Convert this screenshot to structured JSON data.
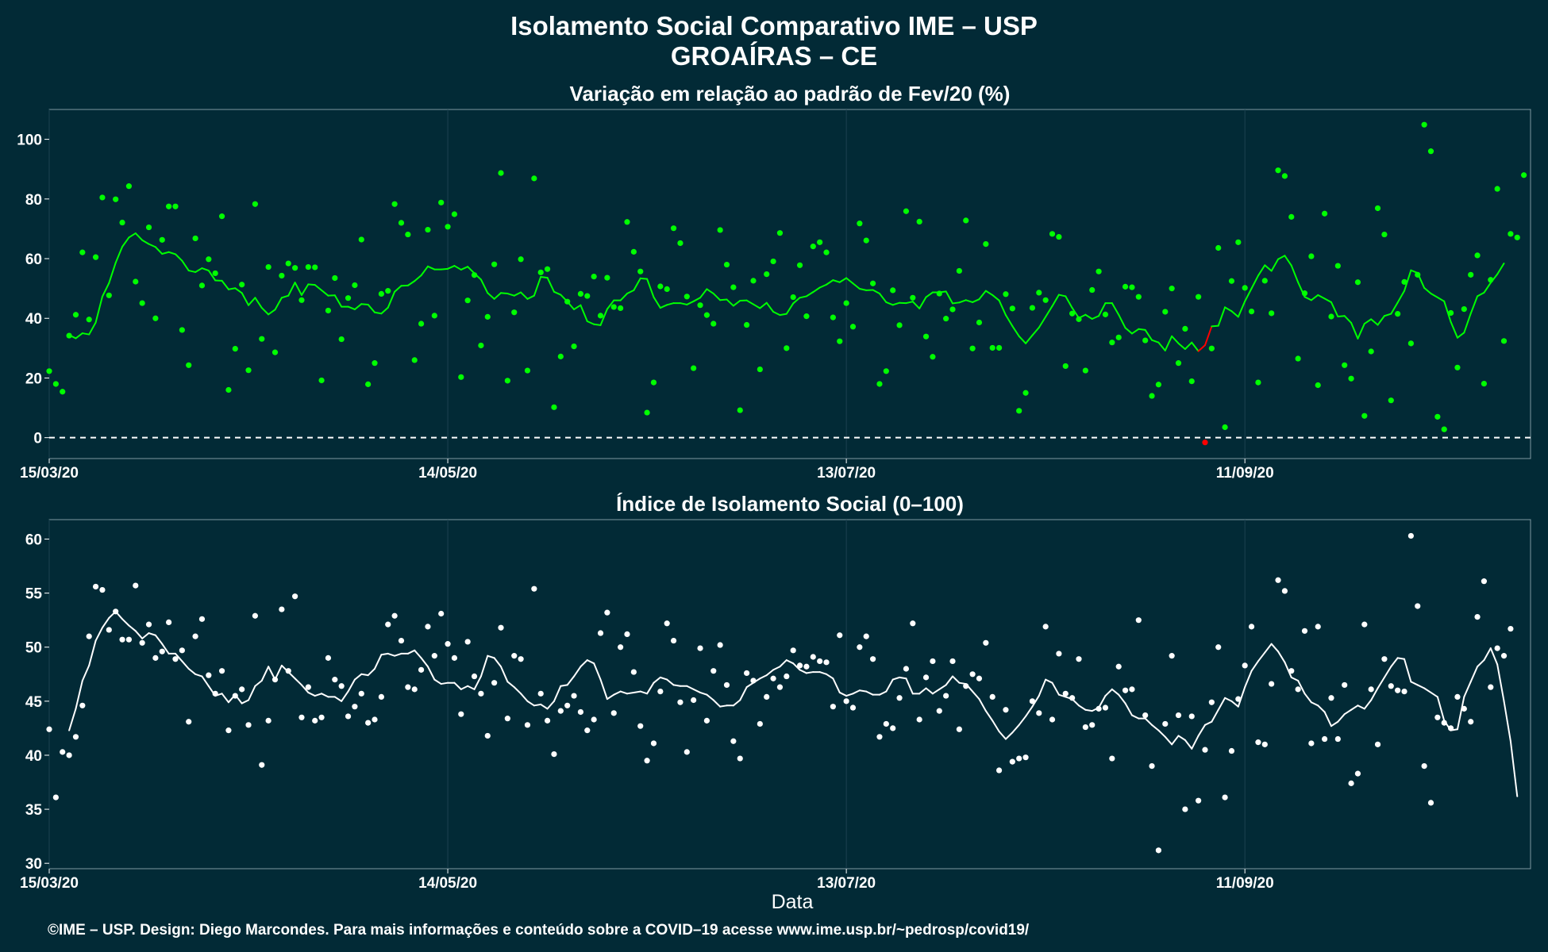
{
  "title": "Isolamento Social Comparativo IME – USP",
  "subtitle": "GROAÍRAS – CE",
  "footer": "©IME – USP. Design: Diego Marcondes. Para mais informações e conteúdo sobre a COVID–19 acesse www.ime.usp.br/~pedrosp/covid19/",
  "colors": {
    "background": "#022a36",
    "green": "#00ff00",
    "white": "#ffffff",
    "negative": "#ff0000",
    "grid": "#1c4250"
  },
  "chart_data": [
    {
      "type": "scatter",
      "title": "Variação em relação ao padrão de Fev/20 (%)",
      "xlabel": "",
      "ylabel": "",
      "x_start": "15/03/20",
      "x_tick_labels": [
        "15/03/20",
        "14/05/20",
        "13/07/20",
        "11/09/20"
      ],
      "x_tick_day_offsets": [
        0,
        60,
        120,
        180
      ],
      "y_ticks": [
        0,
        20,
        40,
        60,
        80,
        100
      ],
      "ylim": [
        -7,
        110
      ],
      "xlim_days": [
        0,
        223
      ],
      "reference_line": 0,
      "series": [
        {
          "kind": "points",
          "values": [
            22.3,
            18.0,
            15.4,
            34.2,
            41.2,
            62.1,
            39.6,
            60.5,
            80.5,
            47.7,
            79.9,
            72.1,
            84.3,
            52.3,
            45.1,
            70.5,
            40.0,
            66.3,
            77.5,
            77.5,
            36.1,
            24.3,
            66.8,
            51.0,
            59.8,
            55.1,
            74.2,
            16.0,
            29.8,
            51.3,
            22.6,
            78.3,
            33.1,
            57.2,
            28.6,
            54.3,
            58.4,
            56.9,
            46.1,
            57.2,
            57.1,
            19.2,
            42.6,
            53.5,
            33.0,
            46.8,
            51.1,
            66.4,
            17.9,
            25.0,
            48.2,
            49.2,
            78.3,
            72.0,
            68.1,
            26.0,
            38.2,
            69.7,
            40.9,
            78.8,
            70.7,
            74.9,
            20.3,
            46.0,
            54.5,
            30.9,
            40.5,
            58.1,
            88.7,
            19.1,
            42.0,
            59.8,
            22.5,
            86.9,
            55.4,
            56.5,
            10.2,
            27.2,
            45.6,
            30.6,
            48.2,
            47.5,
            54.0,
            40.9,
            53.6,
            43.8,
            43.4,
            72.3,
            62.3,
            55.7,
            8.4,
            18.5,
            50.7,
            49.8,
            70.2,
            65.2,
            47.3,
            23.3,
            44.4,
            41.1,
            38.2,
            69.6,
            58.0,
            50.4,
            9.2,
            37.8,
            52.6,
            22.9,
            54.8,
            59.1,
            68.6,
            30.0,
            47.1,
            57.8,
            40.7,
            64.1,
            65.5,
            62.1,
            40.3,
            32.3,
            45.1,
            37.2,
            71.8,
            66.1,
            51.7,
            18.0,
            22.3,
            49.4,
            37.7,
            75.9,
            46.9,
            72.4,
            33.9,
            27.1,
            48.3,
            39.9,
            43.0,
            55.9,
            72.8,
            29.9,
            38.6,
            64.9,
            30.1,
            30.1,
            48.1,
            43.3,
            9.0,
            15.0,
            43.5,
            48.6,
            46.1,
            68.3,
            67.3,
            24.0,
            41.6,
            39.7,
            22.5,
            49.5,
            55.7,
            41.3,
            31.9,
            33.6,
            50.6,
            50.4,
            47.2,
            32.6,
            14.0,
            17.8,
            42.2,
            50.0,
            25.0,
            36.5,
            18.9,
            47.2,
            -1.6,
            29.9,
            63.6,
            3.5,
            52.5,
            65.5,
            50.2,
            42.3,
            18.5,
            52.6,
            41.7,
            89.6,
            87.7,
            74.0,
            26.5,
            48.4,
            60.8,
            17.6,
            75.1,
            40.6,
            57.6,
            24.3,
            19.8,
            52.1,
            7.3,
            28.9,
            76.9,
            68.1,
            12.5,
            41.5,
            52.2,
            31.6,
            54.6,
            104.9,
            96.0,
            7.0,
            2.8,
            41.8,
            23.5,
            43.1,
            54.6,
            61.1,
            18.1,
            52.9,
            83.4,
            32.4,
            68.3,
            67.1,
            88.0
          ]
        },
        {
          "kind": "moving_average",
          "values": [
            34.4,
            33.3,
            35.0,
            34.6,
            38.6,
            47.3,
            51.8,
            58.6,
            64.0,
            67.1,
            68.5,
            66.2,
            64.9,
            63.9,
            61.6,
            62.2,
            61.5,
            59.3,
            56.0,
            55.5,
            56.8,
            56.0,
            52.7,
            52.6,
            49.7,
            50.1,
            48.5,
            44.4,
            46.9,
            43.5,
            41.3,
            42.9,
            46.9,
            47.6,
            52.0,
            47.8,
            51.4,
            51.2,
            49.4,
            47.6,
            47.7,
            43.9,
            43.9,
            43.0,
            44.8,
            44.6,
            42.0,
            41.6,
            43.6,
            48.9,
            50.9,
            51.0,
            52.5,
            54.4,
            57.4,
            56.4,
            56.4,
            56.6,
            57.6,
            56.3,
            57.3,
            55.1,
            53.0,
            48.5,
            46.5,
            48.5,
            48.3,
            47.6,
            48.7,
            46.5,
            47.6,
            53.9,
            53.6,
            48.9,
            47.9,
            45.6,
            43.0,
            44.4,
            39.0,
            38.0,
            37.7,
            43.1,
            46.0,
            46.0,
            48.3,
            49.4,
            53.4,
            53.2,
            47.1,
            43.5,
            44.5,
            45.1,
            45.1,
            44.6,
            45.7,
            46.9,
            49.8,
            48.3,
            46.1,
            46.3,
            44.2,
            45.9,
            46.0,
            44.7,
            43.4,
            45.2,
            42.2,
            41.1,
            41.5,
            45.0,
            46.9,
            47.4,
            48.8,
            50.3,
            51.3,
            52.8,
            52.1,
            53.5,
            51.7,
            49.9,
            49.4,
            49.5,
            48.3,
            45.4,
            44.5,
            45.2,
            45.1,
            45.6,
            43.3,
            47.1,
            48.7,
            48.7,
            49.0,
            45.0,
            45.3,
            46.1,
            45.4,
            46.4,
            49.2,
            47.8,
            46.0,
            41.1,
            37.4,
            34.0,
            31.6,
            34.3,
            36.9,
            40.5,
            44.1,
            47.9,
            47.4,
            43.5,
            40.1,
            41.2,
            39.8,
            40.8,
            45.1,
            45.1,
            41.2,
            36.8,
            34.9,
            36.4,
            36.1,
            32.7,
            31.9,
            29.2,
            34.0,
            31.6,
            29.7,
            31.9,
            29.0,
            31.0,
            37.3,
            37.5,
            43.7,
            42.4,
            40.5,
            45.7,
            50.0,
            54.3,
            57.8,
            55.9,
            59.8,
            61.0,
            57.7,
            52.1,
            47.2,
            46.1,
            47.8,
            46.6,
            45.4,
            40.6,
            40.8,
            38.5,
            33.2,
            38.2,
            39.7,
            37.8,
            40.8,
            41.5,
            45.3,
            49.2,
            56.1,
            55.2,
            50.2,
            48.3,
            47.0,
            45.7,
            38.8,
            33.5,
            35.2,
            41.6,
            47.4,
            48.6,
            51.9,
            54.8,
            58.4
          ]
        }
      ]
    },
    {
      "type": "scatter",
      "title": "Índice de Isolamento Social (0–100)",
      "xlabel": "Data",
      "ylabel": "",
      "x_start": "15/03/20",
      "x_tick_labels": [
        "15/03/20",
        "14/05/20",
        "13/07/20",
        "11/09/20"
      ],
      "x_tick_day_offsets": [
        0,
        60,
        120,
        180
      ],
      "y_ticks": [
        30,
        35,
        40,
        45,
        50,
        55,
        60
      ],
      "ylim": [
        29.5,
        61.8
      ],
      "xlim_days": [
        0,
        223
      ],
      "series": [
        {
          "kind": "points",
          "values": [
            42.4,
            36.1,
            40.3,
            40.0,
            41.7,
            44.6,
            51.0,
            55.6,
            55.3,
            51.6,
            53.3,
            50.7,
            50.7,
            55.7,
            50.4,
            52.1,
            49.0,
            49.6,
            52.3,
            48.9,
            49.7,
            43.1,
            51.0,
            52.6,
            47.4,
            45.7,
            47.8,
            42.3,
            45.5,
            46.1,
            42.8,
            52.9,
            39.1,
            43.2,
            47.0,
            53.5,
            47.8,
            54.7,
            43.5,
            46.3,
            43.2,
            43.5,
            49.0,
            47.0,
            46.4,
            43.6,
            44.5,
            45.7,
            43.0,
            43.3,
            45.4,
            52.1,
            52.9,
            50.6,
            46.3,
            46.1,
            47.9,
            51.9,
            49.2,
            53.1,
            50.3,
            49.0,
            43.8,
            50.5,
            47.3,
            45.7,
            41.8,
            46.7,
            51.8,
            43.4,
            49.2,
            48.9,
            42.8,
            55.4,
            45.7,
            43.2,
            40.1,
            44.1,
            44.6,
            45.5,
            44.0,
            42.3,
            43.3,
            51.3,
            53.2,
            43.9,
            50.0,
            51.2,
            47.7,
            42.7,
            39.5,
            41.1,
            45.9,
            52.2,
            50.6,
            44.9,
            40.3,
            45.1,
            49.9,
            43.2,
            47.8,
            50.2,
            46.5,
            41.3,
            39.7,
            47.6,
            46.9,
            42.9,
            45.4,
            47.1,
            46.3,
            47.3,
            49.7,
            48.3,
            48.2,
            49.1,
            48.7,
            48.6,
            44.5,
            51.1,
            45.0,
            44.4,
            50.0,
            51.0,
            48.9,
            41.7,
            42.9,
            42.5,
            45.3,
            48.0,
            52.2,
            43.3,
            47.2,
            48.7,
            44.1,
            45.5,
            48.7,
            42.4,
            46.4,
            47.5,
            47.1,
            50.4,
            45.4,
            38.6,
            44.2,
            39.4,
            39.7,
            39.8,
            45.0,
            43.9,
            51.9,
            43.3,
            49.4,
            45.7,
            45.3,
            48.9,
            42.6,
            42.8,
            44.3,
            44.4,
            39.7,
            48.2,
            46.0,
            46.1,
            52.5,
            43.7,
            39.0,
            31.2,
            42.9,
            49.2,
            43.7,
            35.0,
            43.6,
            35.8,
            40.5,
            44.9,
            50.0,
            36.1,
            40.4,
            45.2,
            48.3,
            51.9,
            41.2,
            41.0,
            46.6,
            56.2,
            55.2,
            47.8,
            46.1,
            51.5,
            41.1,
            51.9,
            41.5,
            45.3,
            41.5,
            46.5,
            37.4,
            38.3,
            52.1,
            46.1,
            41.0,
            48.9,
            46.4,
            46.0,
            45.9,
            60.3,
            53.8,
            39.0,
            35.6,
            43.5,
            43.0,
            42.5,
            45.4,
            44.3,
            43.1,
            52.8,
            56.1,
            46.3,
            49.9,
            49.2,
            51.7
          ]
        },
        {
          "kind": "moving_average",
          "values": [
            42.3,
            44.3,
            46.9,
            48.3,
            50.6,
            51.8,
            52.7,
            53.3,
            52.6,
            52.0,
            51.5,
            50.8,
            51.3,
            51.1,
            50.3,
            49.4,
            49.4,
            48.7,
            48.0,
            47.5,
            47.3,
            46.4,
            45.5,
            45.7,
            44.9,
            45.6,
            44.8,
            45.1,
            46.4,
            46.9,
            48.2,
            47.0,
            48.3,
            47.7,
            47.1,
            46.5,
            45.8,
            45.5,
            45.7,
            45.4,
            45.4,
            45.0,
            45.9,
            47.0,
            47.5,
            47.4,
            48.0,
            49.3,
            49.4,
            49.2,
            49.4,
            49.4,
            49.7,
            49.0,
            48.2,
            47.0,
            46.6,
            46.7,
            46.7,
            46.1,
            46.4,
            46.1,
            47.3,
            49.2,
            49.0,
            48.2,
            46.8,
            46.3,
            45.7,
            45.0,
            44.6,
            44.7,
            44.3,
            45.0,
            46.4,
            46.5,
            47.3,
            48.2,
            48.8,
            48.5,
            47.0,
            45.2,
            45.6,
            45.9,
            45.7,
            45.8,
            45.9,
            45.7,
            46.7,
            47.2,
            47.0,
            46.5,
            46.4,
            46.4,
            46.1,
            45.8,
            45.6,
            45.1,
            44.5,
            44.6,
            44.6,
            45.1,
            46.3,
            46.7,
            47.1,
            47.4,
            47.9,
            48.2,
            48.8,
            48.5,
            47.9,
            47.6,
            47.7,
            47.7,
            47.5,
            47.1,
            45.8,
            45.5,
            45.7,
            46.0,
            45.9,
            45.6,
            45.6,
            45.9,
            47.0,
            47.2,
            47.1,
            45.7,
            45.7,
            46.2,
            45.7,
            46.1,
            46.5,
            47.3,
            46.7,
            46.6,
            45.9,
            45.2,
            44.1,
            43.2,
            42.2,
            41.5,
            42.1,
            42.8,
            43.6,
            44.5,
            45.5,
            47.0,
            46.7,
            45.6,
            45.4,
            45.2,
            44.6,
            44.2,
            44.1,
            44.4,
            45.5,
            46.1,
            45.6,
            44.8,
            43.7,
            43.4,
            43.4,
            42.8,
            42.3,
            41.7,
            41.0,
            41.8,
            41.4,
            40.6,
            41.8,
            42.8,
            43.1,
            44.2,
            45.3,
            45.0,
            44.5,
            46.3,
            47.8,
            48.7,
            49.5,
            50.3,
            49.6,
            48.6,
            47.2,
            46.9,
            45.7,
            44.9,
            44.6,
            44.0,
            42.7,
            43.1,
            43.8,
            44.2,
            44.6,
            44.3,
            45.1,
            46.2,
            47.2,
            48.2,
            49.0,
            48.9,
            46.8,
            46.5,
            46.2,
            45.8,
            45.4,
            43.2,
            42.3,
            42.4,
            45.4,
            46.8,
            48.2,
            48.8,
            49.9,
            48.4,
            45.0,
            41.3,
            36.2
          ]
        }
      ]
    }
  ]
}
